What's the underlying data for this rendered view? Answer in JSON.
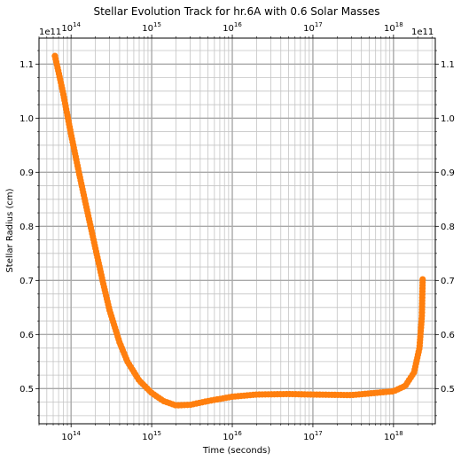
{
  "chart_data": {
    "type": "scatter",
    "title": "Stellar Evolution Track for hr.6A with 0.6 Solar Masses",
    "xlabel": "Time (seconds)",
    "ylabel": "Stellar Radius (cm)",
    "x_scale": "log",
    "xlim": [
      40000000000000,
      3300000000000000000
    ],
    "ylim": [
      0.435,
      1.148
    ],
    "y_multiplier_label": "1e11",
    "x_ticks": [
      {
        "value": 100000000000000,
        "label": "10",
        "exp": "14"
      },
      {
        "value": 1000000000000000,
        "label": "10",
        "exp": "15"
      },
      {
        "value": 10000000000000000,
        "label": "10",
        "exp": "16"
      },
      {
        "value": 100000000000000000,
        "label": "10",
        "exp": "17"
      },
      {
        "value": 1000000000000000000,
        "label": "10",
        "exp": "18"
      }
    ],
    "y_ticks": [
      {
        "value": 0.5,
        "label": "0.5"
      },
      {
        "value": 0.6,
        "label": "0.6"
      },
      {
        "value": 0.7,
        "label": "0.7"
      },
      {
        "value": 0.8,
        "label": "0.8"
      },
      {
        "value": 0.9,
        "label": "0.9"
      },
      {
        "value": 1.0,
        "label": "1.0"
      },
      {
        "value": 1.1,
        "label": "1.1"
      }
    ],
    "grid": true,
    "marker_color": "#ff7f0e",
    "series": [
      {
        "anchors_x": [
          63000000000000,
          70000000000000,
          80000000000000,
          90000000000000,
          100000000000000,
          125000000000000,
          150000000000000,
          200000000000000,
          250000000000000,
          300000000000000,
          400000000000000,
          500000000000000,
          700000000000000,
          1000000000000000,
          1400000000000000,
          2000000000000000,
          3000000000000000,
          5000000000000000,
          10000000000000000,
          20000000000000000,
          50000000000000000,
          100000000000000000,
          300000000000000000,
          1000000000000000000,
          1400000000000000000,
          1800000000000000000,
          2100000000000000000,
          2250000000000000000,
          2300000000000000000
        ],
        "anchors_y": [
          1.115,
          1.085,
          1.045,
          1.005,
          0.97,
          0.9,
          0.845,
          0.76,
          0.695,
          0.645,
          0.585,
          0.55,
          0.515,
          0.492,
          0.477,
          0.469,
          0.47,
          0.477,
          0.485,
          0.489,
          0.49,
          0.489,
          0.488,
          0.495,
          0.505,
          0.53,
          0.575,
          0.635,
          0.702
        ],
        "point_count": 240
      }
    ]
  }
}
